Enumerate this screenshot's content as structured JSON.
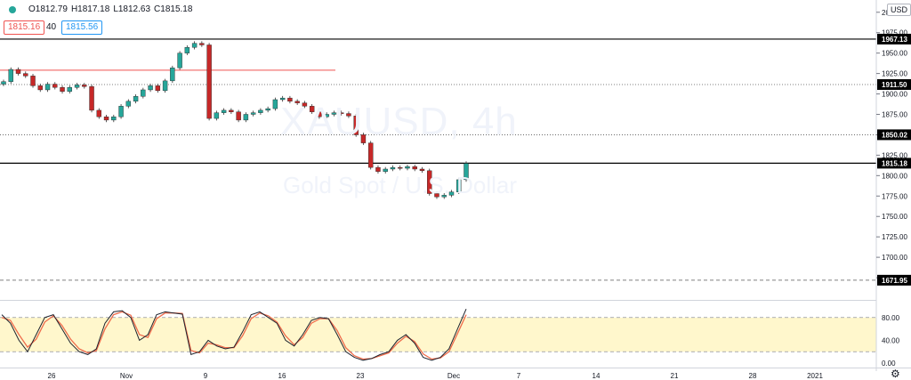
{
  "header": {
    "open": "O1812.79",
    "high": "H1817.18",
    "low": "L1812.63",
    "close": "C1815.18",
    "sell_price": "1815.16",
    "spread": "40",
    "buy_price": "1815.56",
    "currency": "USD"
  },
  "watermark": {
    "symbol": "XAUUSD, 4h",
    "description": "Gold Spot / U.S. Dollar"
  },
  "colors": {
    "up": "#26a69a",
    "down": "#c62828",
    "osc_k": "#1e222d",
    "osc_d": "#ef6c4c",
    "band": "#fff7cc"
  },
  "price_axis": {
    "ticks": [
      "2000.00",
      "1975.00",
      "1950.00",
      "1925.00",
      "1900.00",
      "1875.00",
      "1850.00",
      "1825.00",
      "1800.00",
      "1775.00",
      "1750.00",
      "1725.00",
      "1700.00",
      "1675.00"
    ]
  },
  "price_lines": [
    {
      "label": "1967.13",
      "value": 1967.13,
      "style": "solid"
    },
    {
      "label": "1911.50",
      "value": 1911.5,
      "style": "dotted"
    },
    {
      "label": "1850.02",
      "value": 1850.02,
      "style": "dotted"
    },
    {
      "label": "1815.18",
      "value": 1815.18,
      "style": "solid"
    },
    {
      "label": "1671.95",
      "value": 1671.95,
      "style": "dashed"
    }
  ],
  "trend_line": {
    "value": 1929,
    "from_date": "Oct 22",
    "to_date": "Nov 20"
  },
  "osc_axis": {
    "ticks": [
      "80.00",
      "40.00",
      "0.00"
    ],
    "band": [
      20,
      80
    ]
  },
  "time_axis": {
    "labels": [
      "26",
      "Nov",
      "9",
      "16",
      "23",
      "Dec",
      "7",
      "14",
      "21",
      "28",
      "2021"
    ]
  },
  "chart_data": {
    "type": "candlestick",
    "timeframe": "4h",
    "candles": [
      1915,
      1930,
      1925,
      1922,
      1910,
      1905,
      1912,
      1908,
      1903,
      1908,
      1911,
      1909,
      1880,
      1872,
      1868,
      1872,
      1885,
      1891,
      1897,
      1905,
      1910,
      1904,
      1916,
      1932,
      1950,
      1957,
      1962,
      1960,
      1870,
      1877,
      1880,
      1878,
      1868,
      1875,
      1877,
      1880,
      1882,
      1893,
      1895,
      1891,
      1889,
      1885,
      1878,
      1872,
      1875,
      1877,
      1876,
      1873,
      1850,
      1840,
      1810,
      1805,
      1808,
      1810,
      1809,
      1811,
      1808,
      1806,
      1778,
      1774,
      1776,
      1780,
      1795,
      1815
    ],
    "stoch_k": [
      85,
      70,
      40,
      20,
      50,
      80,
      85,
      60,
      35,
      20,
      15,
      25,
      70,
      90,
      92,
      80,
      40,
      50,
      85,
      90,
      88,
      86,
      15,
      20,
      40,
      30,
      25,
      28,
      55,
      85,
      90,
      80,
      70,
      40,
      30,
      50,
      75,
      80,
      78,
      50,
      20,
      10,
      5,
      8,
      15,
      20,
      40,
      50,
      35,
      10,
      5,
      10,
      25,
      60,
      95
    ],
    "stoch_d": [
      80,
      75,
      50,
      28,
      42,
      72,
      83,
      66,
      42,
      25,
      18,
      22,
      60,
      85,
      90,
      84,
      50,
      45,
      78,
      88,
      88,
      87,
      22,
      18,
      35,
      32,
      27,
      27,
      48,
      78,
      88,
      83,
      72,
      48,
      32,
      45,
      70,
      78,
      78,
      57,
      27,
      13,
      7,
      8,
      13,
      18,
      35,
      47,
      38,
      16,
      7,
      9,
      20,
      52,
      85
    ],
    "ylim": [
      1650,
      2015
    ],
    "osc_ylim": [
      0,
      100
    ]
  }
}
